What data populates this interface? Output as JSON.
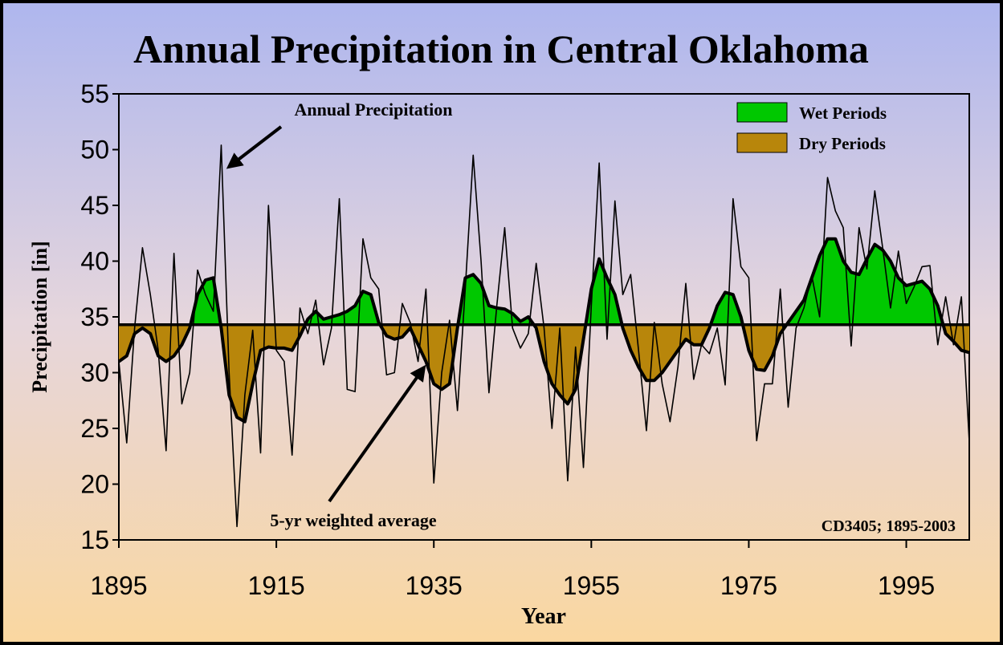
{
  "chart_data": {
    "type": "line",
    "title": "Annual Precipitation in Central Oklahoma",
    "ylabel": "Precipitation [in]",
    "xlabel": "Year",
    "annotations": [
      "Annual Precipitation",
      "5-yr weighted average",
      "CD3405; 1895-2003"
    ],
    "legend": [
      {
        "name": "Wet Periods",
        "color": "#00c800"
      },
      {
        "name": "Dry Periods",
        "color": "#b8860b"
      }
    ],
    "reference_line": 34.3,
    "xlim": [
      1895,
      2003
    ],
    "ylim": [
      15,
      55
    ],
    "xticks": [
      1895,
      1915,
      1935,
      1955,
      1975,
      1995
    ],
    "yticks": [
      15,
      20,
      25,
      30,
      35,
      40,
      45,
      50,
      55
    ],
    "x": [
      1895,
      1896,
      1897,
      1898,
      1899,
      1900,
      1901,
      1902,
      1903,
      1904,
      1905,
      1906,
      1907,
      1908,
      1909,
      1910,
      1911,
      1912,
      1913,
      1914,
      1915,
      1916,
      1917,
      1918,
      1919,
      1920,
      1921,
      1922,
      1923,
      1924,
      1925,
      1926,
      1927,
      1928,
      1929,
      1930,
      1931,
      1932,
      1933,
      1934,
      1935,
      1936,
      1937,
      1938,
      1939,
      1940,
      1941,
      1942,
      1943,
      1944,
      1945,
      1946,
      1947,
      1948,
      1949,
      1950,
      1951,
      1952,
      1953,
      1954,
      1955,
      1956,
      1957,
      1958,
      1959,
      1960,
      1961,
      1962,
      1963,
      1964,
      1965,
      1966,
      1967,
      1968,
      1969,
      1970,
      1971,
      1972,
      1973,
      1974,
      1975,
      1976,
      1977,
      1978,
      1979,
      1980,
      1981,
      1982,
      1983,
      1984,
      1985,
      1986,
      1987,
      1988,
      1989,
      1990,
      1991,
      1992,
      1993,
      1994,
      1995,
      1996,
      1997,
      1998,
      1999,
      2000,
      2001,
      2002,
      2003
    ],
    "series": [
      {
        "color": "#000000",
        "values": [
          31,
          23.7,
          34,
          41.2,
          37,
          32,
          23,
          40.7,
          27.2,
          30,
          39.2,
          37,
          35.5,
          50.4,
          30,
          16.2,
          28,
          33.8,
          22.8,
          45,
          32,
          31,
          22.6,
          35.8,
          33.5,
          36.5,
          30.7,
          34,
          45.6,
          28.5,
          28.3,
          42,
          38.5,
          37.5,
          29.8,
          30,
          36.2,
          34.5,
          31,
          37.5,
          20.1,
          30,
          34.7,
          26.6,
          37.6,
          49.5,
          40,
          28.2,
          36,
          43,
          34,
          32.2,
          33.5,
          39.8,
          34,
          25,
          34,
          20.3,
          32.3,
          21.5,
          36,
          48.8,
          33,
          45.4,
          37,
          38.8,
          32,
          24.8,
          34.5,
          29,
          25.6,
          30.5,
          38,
          29.4,
          32.5,
          31.7,
          34,
          28.9,
          45.6,
          39.5,
          38.5,
          23.9,
          29,
          29,
          37.5,
          26.9,
          34,
          35.8,
          38.7,
          35,
          47.5,
          44.5,
          43,
          32.4,
          43,
          39.3,
          46.3,
          41.2,
          35.8,
          40.9,
          36.2,
          37.7,
          39.5,
          39.6,
          32.5,
          36.8,
          32.5,
          36.8,
          23.8
        ]
      },
      {
        "color": "#000000",
        "values": [
          31,
          31.5,
          33.5,
          34,
          33.5,
          31.5,
          31,
          31.5,
          32.5,
          34,
          37,
          38.3,
          38.5,
          34,
          28,
          26,
          25.6,
          29,
          32,
          32.3,
          32.2,
          32.2,
          32,
          33.3,
          34.8,
          35.5,
          34.8,
          35,
          35.2,
          35.5,
          36,
          37.3,
          37,
          34.5,
          33.3,
          33,
          33.2,
          34,
          32.5,
          31,
          29,
          28.5,
          29,
          34,
          38.5,
          38.8,
          38,
          36,
          35.8,
          35.7,
          35.3,
          34.6,
          35,
          34,
          31,
          29,
          28,
          27.2,
          28.5,
          33,
          37.5,
          40.2,
          38.5,
          37,
          34,
          32,
          30.5,
          29.3,
          29.3,
          30,
          31,
          32,
          33,
          32.5,
          32.5,
          34,
          36,
          37.2,
          37,
          35,
          32,
          30.3,
          30.2,
          31.5,
          33.5,
          34.5,
          35.5,
          36.5,
          38.5,
          40.5,
          42,
          42,
          40,
          39,
          38.8,
          40.2,
          41.5,
          41,
          40,
          38.5,
          37.8,
          38,
          38.2,
          37.5,
          36,
          33.5,
          32.8,
          32,
          31.8
        ]
      }
    ]
  }
}
